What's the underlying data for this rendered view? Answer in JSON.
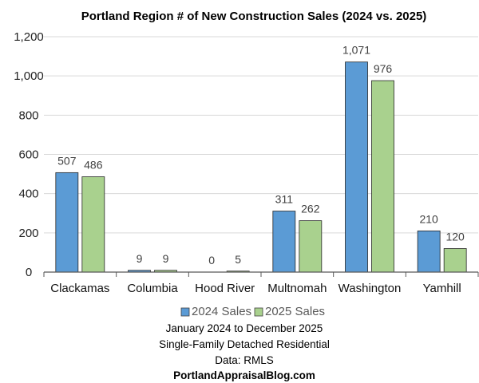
{
  "chart_data": {
    "type": "bar",
    "title": "Portland Region # of New Construction Sales (2024 vs. 2025)",
    "categories": [
      "Clackamas",
      "Columbia",
      "Hood River",
      "Multnomah",
      "Washington",
      "Yamhill"
    ],
    "series": [
      {
        "name": "2024 Sales",
        "color": "#5B9BD5",
        "values": [
          507,
          9,
          0,
          311,
          1071,
          210
        ],
        "labels": [
          "507",
          "9",
          "0",
          "311",
          "1,071",
          "210"
        ]
      },
      {
        "name": "2025 Sales",
        "color": "#A9D18E",
        "values": [
          486,
          9,
          5,
          262,
          976,
          120
        ],
        "labels": [
          "486",
          "9",
          "5",
          "262",
          "976",
          "120"
        ]
      }
    ],
    "ylim": [
      0,
      1200
    ],
    "yticks": [
      0,
      200,
      400,
      600,
      800,
      1000,
      1200
    ],
    "ytick_labels": [
      "0",
      "200",
      "400",
      "600",
      "800",
      "1,000",
      "1,200"
    ],
    "grid": true,
    "legend_position": "bottom",
    "notes": [
      "January 2024 to December 2025",
      "Single-Family Detached Residential",
      "Data: RMLS"
    ],
    "source": "PortlandAppraisalBlog.com"
  }
}
